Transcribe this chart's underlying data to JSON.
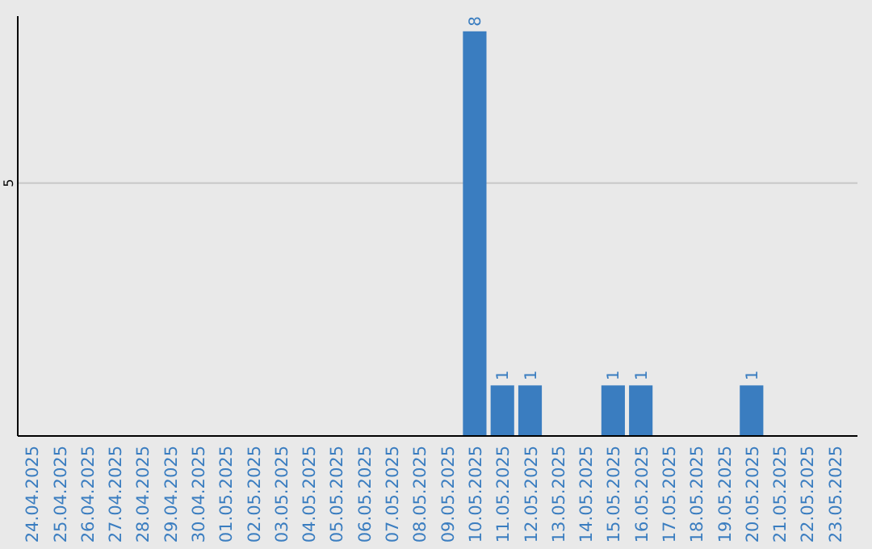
{
  "chart_data": {
    "type": "bar",
    "categories": [
      "24.04.2025",
      "25.04.2025",
      "26.04.2025",
      "27.04.2025",
      "28.04.2025",
      "29.04.2025",
      "30.04.2025",
      "01.05.2025",
      "02.05.2025",
      "03.05.2025",
      "04.05.2025",
      "05.05.2025",
      "06.05.2025",
      "07.05.2025",
      "08.05.2025",
      "09.05.2025",
      "10.05.2025",
      "11.05.2025",
      "12.05.2025",
      "13.05.2025",
      "14.05.2025",
      "15.05.2025",
      "16.05.2025",
      "17.05.2025",
      "18.05.2025",
      "19.05.2025",
      "20.05.2025",
      "21.05.2025",
      "22.05.2025",
      "23.05.2025"
    ],
    "values": [
      null,
      null,
      null,
      null,
      null,
      null,
      null,
      null,
      null,
      null,
      null,
      null,
      null,
      null,
      null,
      null,
      8,
      1,
      1,
      null,
      null,
      1,
      1,
      null,
      null,
      null,
      1,
      null,
      null,
      null
    ],
    "data_labels": true,
    "color": "#3a7dc0",
    "ylim": [
      0,
      8.3
    ],
    "yticks": [
      5
    ],
    "grid": "y"
  }
}
